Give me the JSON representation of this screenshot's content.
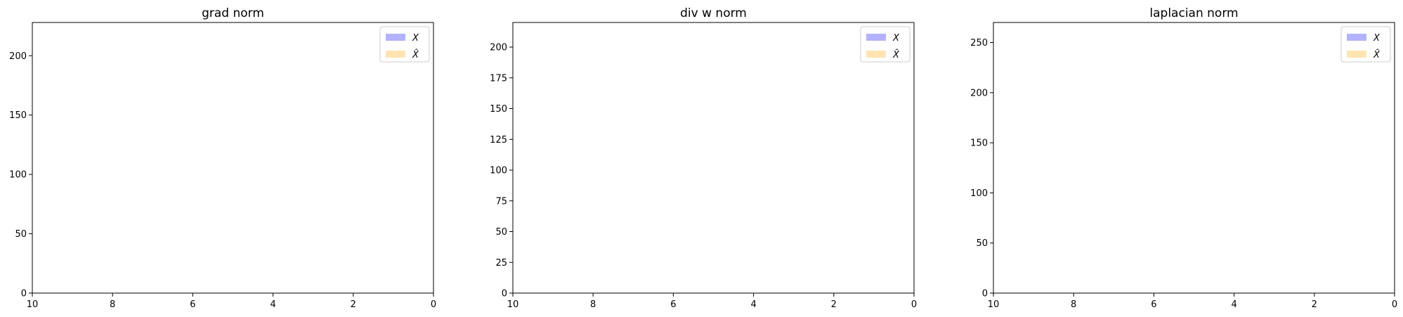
{
  "chart_data": [
    {
      "type": "bar",
      "title": "grad norm",
      "xlabel": "",
      "ylabel": "",
      "xlim": [
        10,
        0
      ],
      "ylim": [
        0,
        228
      ],
      "x_ticks": [
        "10",
        "8",
        "6",
        "4",
        "2",
        "0"
      ],
      "y_ticks": [
        "0",
        "50",
        "100",
        "150",
        "200"
      ],
      "grid": false,
      "legend_position": "top-right",
      "series": [
        {
          "name": "X",
          "color": "#0000ff",
          "values": []
        },
        {
          "name": "X̂",
          "color": "#ffa500",
          "values": []
        }
      ]
    },
    {
      "type": "bar",
      "title": "div w norm",
      "xlabel": "",
      "ylabel": "",
      "xlim": [
        10,
        0
      ],
      "ylim": [
        0,
        220
      ],
      "x_ticks": [
        "10",
        "8",
        "6",
        "4",
        "2",
        "0"
      ],
      "y_ticks": [
        "0",
        "25",
        "50",
        "75",
        "100",
        "125",
        "150",
        "175",
        "200"
      ],
      "grid": false,
      "legend_position": "top-right",
      "series": [
        {
          "name": "X",
          "color": "#0000ff",
          "values": []
        },
        {
          "name": "X̂",
          "color": "#ffa500",
          "values": []
        }
      ]
    },
    {
      "type": "bar",
      "title": "laplacian norm",
      "xlabel": "",
      "ylabel": "",
      "xlim": [
        10,
        0
      ],
      "ylim": [
        0,
        270
      ],
      "x_ticks": [
        "10",
        "8",
        "6",
        "4",
        "2",
        "0"
      ],
      "y_ticks": [
        "0",
        "50",
        "100",
        "150",
        "200",
        "250"
      ],
      "grid": false,
      "legend_position": "top-right",
      "series": [
        {
          "name": "X",
          "color": "#0000ff",
          "values": []
        },
        {
          "name": "X̂",
          "color": "#ffa500",
          "values": []
        }
      ]
    }
  ]
}
